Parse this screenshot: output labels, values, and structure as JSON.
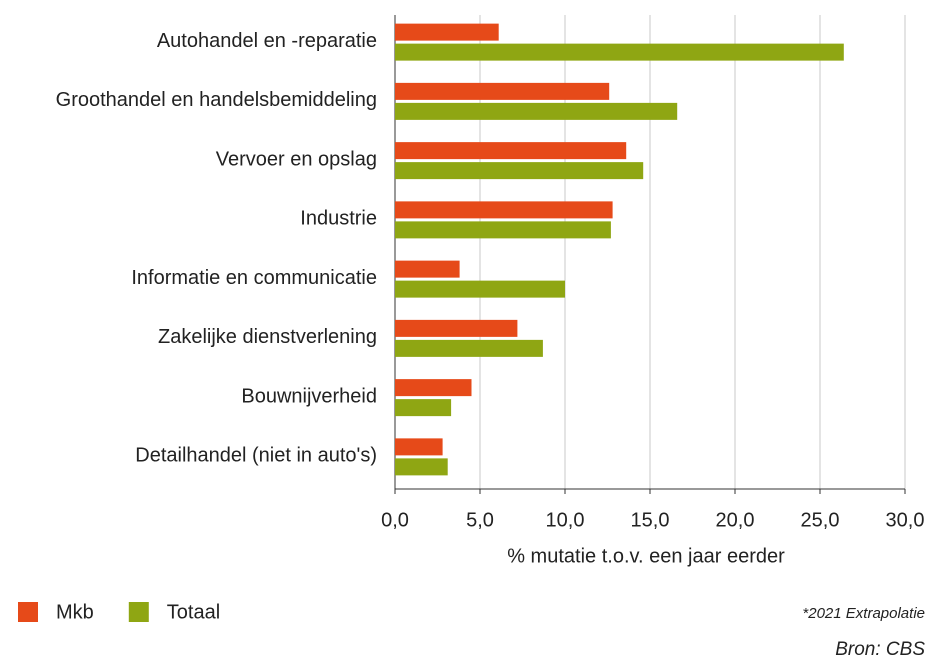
{
  "chart_data": {
    "type": "hbar",
    "categories": [
      "Autohandel en -reparatie",
      "Groothandel en handelsbemiddeling",
      "Vervoer en opslag",
      "Industrie",
      "Informatie en communicatie",
      "Zakelijke dienstverlening",
      "Bouwnijverheid",
      "Detailhandel (niet in auto's)"
    ],
    "series": [
      {
        "name": "Mkb",
        "color": "#e64a19",
        "values": [
          6.1,
          12.6,
          13.6,
          12.8,
          3.8,
          7.2,
          4.5,
          2.8
        ]
      },
      {
        "name": "Totaal",
        "color": "#8fa613",
        "values": [
          26.4,
          16.6,
          14.6,
          12.7,
          10.0,
          8.7,
          3.3,
          3.1
        ]
      }
    ],
    "x_label": "% mutatie t.o.v. een jaar eerder",
    "xlim": [
      0,
      30
    ],
    "xticks": [
      {
        "value": 0,
        "label": "0,0"
      },
      {
        "value": 5,
        "label": "5,0"
      },
      {
        "value": 10,
        "label": "10,0"
      },
      {
        "value": 15,
        "label": "15,0"
      },
      {
        "value": 20,
        "label": "20,0"
      },
      {
        "value": 25,
        "label": "25,0"
      },
      {
        "value": 30,
        "label": "30,0"
      }
    ],
    "grid": true,
    "legend": "bottom-left",
    "annotations": [
      "*2021 Extrapolatie",
      "Bron: CBS"
    ]
  }
}
